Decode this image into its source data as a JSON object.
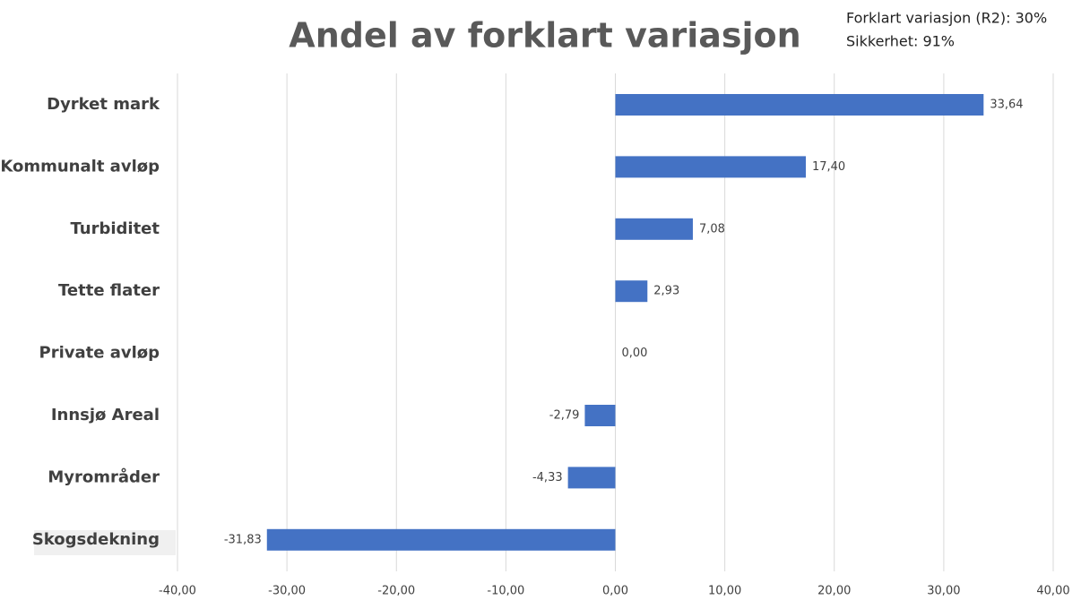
{
  "chart_data": {
    "type": "bar",
    "orientation": "horizontal",
    "title": "Andel av forklart variasjon",
    "annotations": [
      "Forklart variasjon (R2): 30%",
      "Sikkerhet: 91%"
    ],
    "categories": [
      "Dyrket mark",
      "Kommunalt avløp",
      "Turbiditet",
      "Tette flater",
      "Private avløp",
      "Innsjø Areal",
      "Myrområder",
      "Skogsdekning"
    ],
    "values": [
      33.64,
      17.4,
      7.08,
      2.93,
      0.0,
      -2.79,
      -4.33,
      -31.83
    ],
    "value_labels": [
      "33,64",
      "17,40",
      "7,08",
      "2,93",
      "0,00",
      "-2,79",
      "-4,33",
      "-31,83"
    ],
    "color": "#4472c4",
    "xlim": [
      -40,
      40
    ],
    "xticks": [
      {
        "value": -40,
        "label": "-40,00"
      },
      {
        "value": -30,
        "label": "-30,00"
      },
      {
        "value": -20,
        "label": "-20,00"
      },
      {
        "value": -10,
        "label": "-10,00"
      },
      {
        "value": 0,
        "label": "0,00"
      },
      {
        "value": 10,
        "label": "10,00"
      },
      {
        "value": 20,
        "label": "20,00"
      },
      {
        "value": 30,
        "label": "30,00"
      },
      {
        "value": 40,
        "label": "40,00"
      }
    ],
    "grid": true
  }
}
